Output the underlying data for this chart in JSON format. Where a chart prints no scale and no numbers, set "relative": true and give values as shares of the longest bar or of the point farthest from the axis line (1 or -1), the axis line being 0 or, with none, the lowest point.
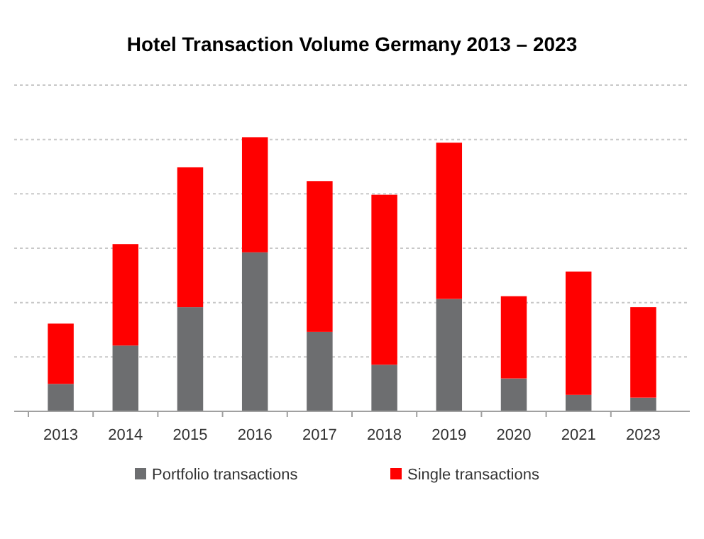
{
  "chart_data": {
    "type": "bar",
    "title": "Hotel Transaction Volume Germany 2013 – 2023",
    "categories": [
      "2013",
      "2014",
      "2015",
      "2016",
      "2017",
      "2018",
      "2019",
      "2020",
      "2021",
      "2023"
    ],
    "stacked": true,
    "relative": true,
    "grid": "y",
    "legend": "bottom",
    "series": [
      {
        "name": "Portfolio transactions",
        "color": "#6d6e70",
        "values": [
          0.1,
          0.24,
          0.38,
          0.58,
          0.29,
          0.17,
          0.41,
          0.12,
          0.06,
          0.05
        ]
      },
      {
        "name": "Single transactions",
        "color": "#ff0000",
        "values": [
          0.22,
          0.37,
          0.51,
          0.42,
          0.55,
          0.62,
          0.57,
          0.3,
          0.45,
          0.33
        ]
      }
    ]
  }
}
